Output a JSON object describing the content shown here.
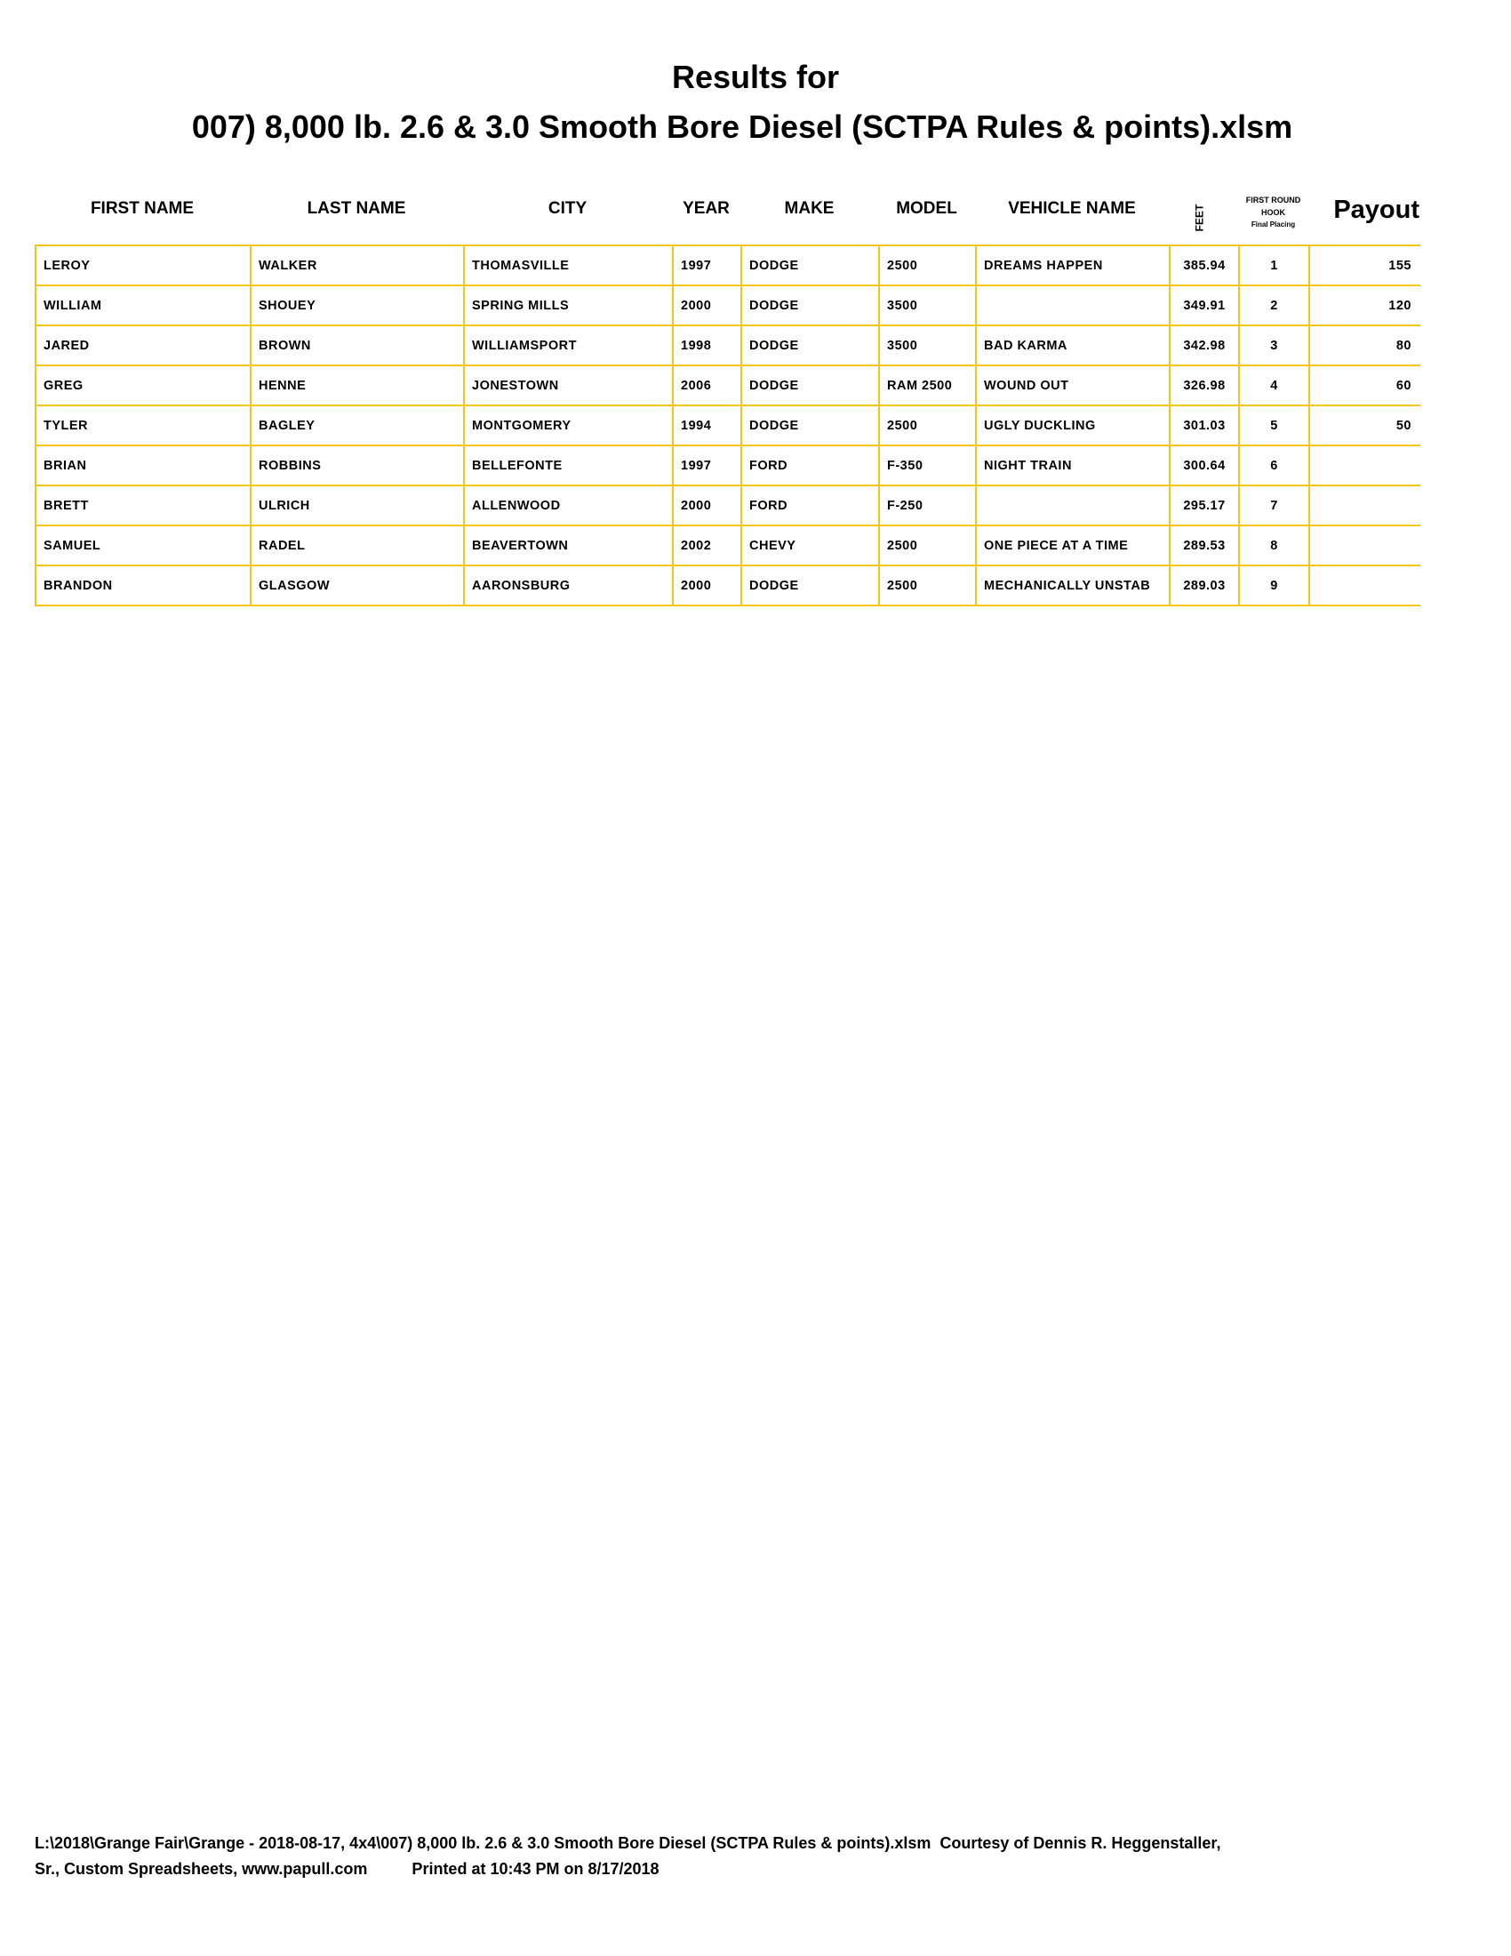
{
  "title_line1": "Results for",
  "title_line2": "007) 8,000 lb. 2.6 & 3.0 Smooth Bore Diesel (SCTPA Rules & points).xlsm",
  "headers": {
    "first": "FIRST NAME",
    "last": "LAST NAME",
    "city": "CITY",
    "year": "YEAR",
    "make": "MAKE",
    "model": "MODEL",
    "vehicle": "VEHICLE NAME",
    "feet": "FEET",
    "hook1": "FIRST ROUND",
    "hook2": "HOOK",
    "hook3": "Final Placing",
    "payout": "Payout"
  },
  "rows": [
    [
      "LEROY",
      "WALKER",
      "THOMASVILLE",
      "1997",
      "DODGE",
      "2500",
      "DREAMS HAPPEN",
      "385.94",
      "1",
      "155"
    ],
    [
      "WILLIAM",
      "SHOUEY",
      "SPRING MILLS",
      "2000",
      "DODGE",
      "3500",
      "",
      "349.91",
      "2",
      "120"
    ],
    [
      "JARED",
      "BROWN",
      "WILLIAMSPORT",
      "1998",
      "DODGE",
      "3500",
      "BAD KARMA",
      "342.98",
      "3",
      "80"
    ],
    [
      "GREG",
      "HENNE",
      "JONESTOWN",
      "2006",
      "DODGE",
      "RAM 2500",
      "WOUND OUT",
      "326.98",
      "4",
      "60"
    ],
    [
      "TYLER",
      "BAGLEY",
      "MONTGOMERY",
      "1994",
      "DODGE",
      "2500",
      "UGLY DUCKLING",
      "301.03",
      "5",
      "50"
    ],
    [
      "BRIAN",
      "ROBBINS",
      "BELLEFONTE",
      "1997",
      "FORD",
      "F-350",
      "NIGHT TRAIN",
      "300.64",
      "6",
      ""
    ],
    [
      "BRETT",
      "ULRICH",
      "ALLENWOOD",
      "2000",
      "FORD",
      "F-250",
      "",
      "295.17",
      "7",
      ""
    ],
    [
      "SAMUEL",
      "RADEL",
      "BEAVERTOWN",
      "2002",
      "CHEVY",
      "2500",
      "ONE PIECE AT A TIME",
      "289.53",
      "8",
      ""
    ],
    [
      "BRANDON",
      "GLASGOW",
      "AARONSBURG",
      "2000",
      "DODGE",
      "2500",
      "MECHANICALLY UNSTAB",
      "289.03",
      "9",
      ""
    ]
  ],
  "footer_line1": "L:\\2018\\Grange Fair\\Grange - 2018-08-17, 4x4\\007) 8,000 lb. 2.6 & 3.0 Smooth Bore Diesel (SCTPA Rules & points).xlsm  Courtesy of Dennis R. Heggenstaller,",
  "footer_line2": "Sr., Custom Spreadsheets, www.papull.com          Printed at 10:43 PM on 8/17/2018",
  "colors": {
    "grid": "#f5c518"
  }
}
